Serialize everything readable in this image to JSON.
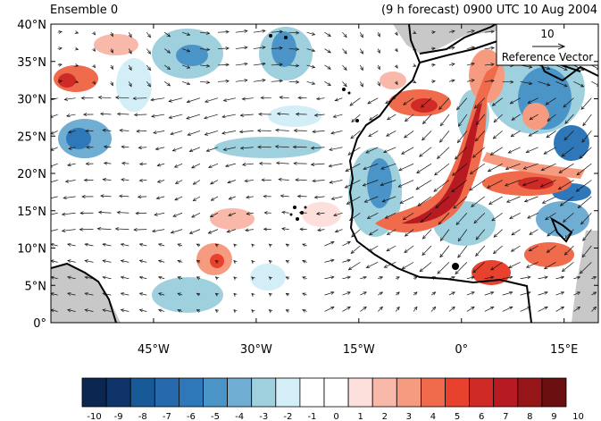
{
  "header": {
    "title_left": "Ensemble 0",
    "title_right": "(9 h forecast) 0900 UTC 10 Aug 2004"
  },
  "map": {
    "lon_range": [
      -60,
      20
    ],
    "lat_range": [
      0,
      40
    ],
    "lat_ticks": [
      {
        "value": 0,
        "label": "0°"
      },
      {
        "value": 5,
        "label": "5°N"
      },
      {
        "value": 10,
        "label": "10°N"
      },
      {
        "value": 15,
        "label": "15°N"
      },
      {
        "value": 20,
        "label": "20°N"
      },
      {
        "value": 25,
        "label": "25°N"
      },
      {
        "value": 30,
        "label": "30°N"
      },
      {
        "value": 35,
        "label": "35°N"
      },
      {
        "value": 40,
        "label": "40°N"
      }
    ],
    "lon_ticks": [
      {
        "value": -45,
        "label": "45°W"
      },
      {
        "value": -30,
        "label": "30°W"
      },
      {
        "value": -15,
        "label": "15°W"
      },
      {
        "value": 0,
        "label": "0°"
      },
      {
        "value": 15,
        "label": "15°E"
      }
    ],
    "reference_vector": {
      "value_label": "10",
      "caption": "Reference Vector"
    },
    "land_color": "#c8c8c8",
    "coastline_color": "#000000"
  },
  "colorbar": {
    "labels": [
      "-10",
      "-9",
      "-8",
      "-7",
      "-6",
      "-5",
      "-4",
      "-3",
      "-2",
      "-1",
      "0",
      "1",
      "2",
      "3",
      "4",
      "5",
      "6",
      "7",
      "8",
      "9",
      "10"
    ],
    "colors": [
      "#0b2650",
      "#0e3469",
      "#185a98",
      "#2669ad",
      "#2e78b9",
      "#4b94c7",
      "#6fadd3",
      "#9fd0de",
      "#d3eef6",
      "#ffffff",
      "#ffffff",
      "#fde0dc",
      "#f9b9aa",
      "#f69a80",
      "#f06a4c",
      "#e8412e",
      "#cf2a26",
      "#b81a22",
      "#951518",
      "#6b0e10"
    ]
  }
}
